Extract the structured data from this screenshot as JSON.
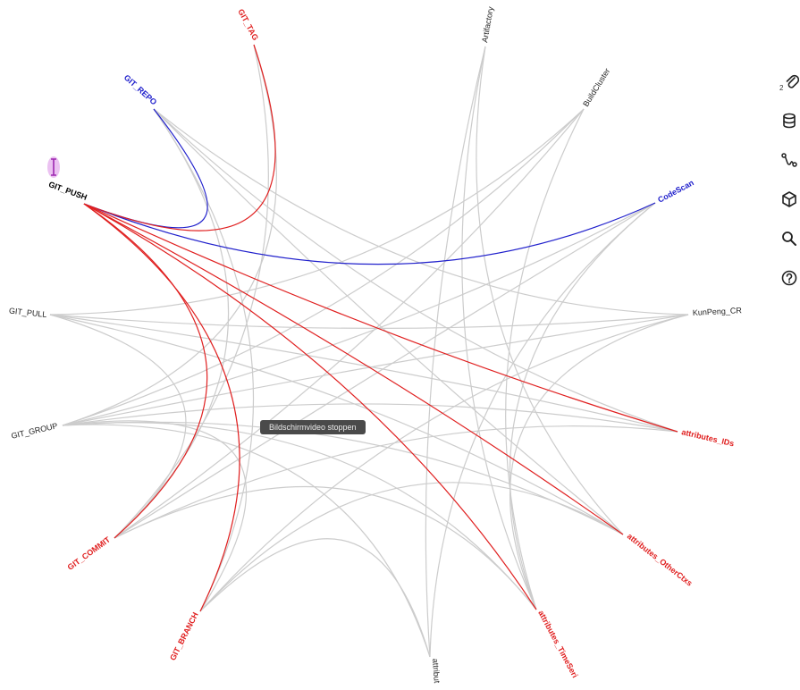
{
  "colors": {
    "edge_default": "#cccccc",
    "edge_red": "#e02020",
    "edge_blue": "#2020cc",
    "label_default": "#222222",
    "label_red": "#e02020",
    "label_blue": "#2020cc",
    "label_selected": "#000000",
    "recording_pill": "#4a4a4a"
  },
  "nodes": [
    {
      "id": "git_push",
      "label": "GIT_PUSH",
      "role": "selected"
    },
    {
      "id": "git_repo",
      "label": "GIT_REPO",
      "role": "blue"
    },
    {
      "id": "git_tag",
      "label": "GIT_TAG",
      "role": "red"
    },
    {
      "id": "artifactory",
      "label": "Artifactory",
      "role": "default"
    },
    {
      "id": "buildcluster",
      "label": "BuildCluster",
      "role": "default"
    },
    {
      "id": "codescan",
      "label": "CodeScan",
      "role": "blue"
    },
    {
      "id": "kunpeng_cr",
      "label": "KunPeng_CR",
      "role": "default"
    },
    {
      "id": "attributes_ids",
      "label": "attributes_IDs",
      "role": "red"
    },
    {
      "id": "attributes_otherctxs",
      "label": "attributes_OtherCtxs",
      "role": "red"
    },
    {
      "id": "attributes_timeseries",
      "label": "attributes_TimeSeri",
      "role": "red"
    },
    {
      "id": "attribut",
      "label": "attribut",
      "role": "default"
    },
    {
      "id": "git_branch",
      "label": "GIT_BRANCH",
      "role": "red"
    },
    {
      "id": "git_commit",
      "label": "GIT_COMMIT",
      "role": "red"
    },
    {
      "id": "git_group",
      "label": "GIT_GROUP",
      "role": "default"
    },
    {
      "id": "git_pull",
      "label": "GIT_PULL",
      "role": "default"
    }
  ],
  "edges": [
    {
      "from": "git_push",
      "to": "git_repo",
      "type": "blue"
    },
    {
      "from": "git_push",
      "to": "codescan",
      "type": "blue"
    },
    {
      "from": "git_push",
      "to": "git_tag",
      "type": "red"
    },
    {
      "from": "git_push",
      "to": "git_commit",
      "type": "red"
    },
    {
      "from": "git_push",
      "to": "git_branch",
      "type": "red"
    },
    {
      "from": "git_push",
      "to": "attributes_ids",
      "type": "red"
    },
    {
      "from": "git_push",
      "to": "attributes_otherctxs",
      "type": "red"
    },
    {
      "from": "git_push",
      "to": "attributes_timeseries",
      "type": "red"
    },
    {
      "from": "git_repo",
      "to": "attributes_ids",
      "type": "default"
    },
    {
      "from": "git_repo",
      "to": "attributes_otherctxs",
      "type": "default"
    },
    {
      "from": "git_repo",
      "to": "git_commit",
      "type": "default"
    },
    {
      "from": "git_repo",
      "to": "git_branch",
      "type": "default"
    },
    {
      "from": "git_repo",
      "to": "kunpeng_cr",
      "type": "default"
    },
    {
      "from": "git_tag",
      "to": "git_commit",
      "type": "default"
    },
    {
      "from": "git_tag",
      "to": "git_group",
      "type": "default"
    },
    {
      "from": "artifactory",
      "to": "attributes_timeseries",
      "type": "default"
    },
    {
      "from": "artifactory",
      "to": "attribut",
      "type": "default"
    },
    {
      "from": "artifactory",
      "to": "attributes_otherctxs",
      "type": "default"
    },
    {
      "from": "buildcluster",
      "to": "git_pull",
      "type": "default"
    },
    {
      "from": "buildcluster",
      "to": "git_group",
      "type": "default"
    },
    {
      "from": "buildcluster",
      "to": "attributes_timeseries",
      "type": "default"
    },
    {
      "from": "buildcluster",
      "to": "git_commit",
      "type": "default"
    },
    {
      "from": "codescan",
      "to": "git_group",
      "type": "default"
    },
    {
      "from": "codescan",
      "to": "attributes_timeseries",
      "type": "default"
    },
    {
      "from": "codescan",
      "to": "attribut",
      "type": "default"
    },
    {
      "from": "codescan",
      "to": "git_commit",
      "type": "default"
    },
    {
      "from": "kunpeng_cr",
      "to": "git_pull",
      "type": "default"
    },
    {
      "from": "kunpeng_cr",
      "to": "git_group",
      "type": "default"
    },
    {
      "from": "kunpeng_cr",
      "to": "attributes_timeseries",
      "type": "default"
    },
    {
      "from": "kunpeng_cr",
      "to": "git_branch",
      "type": "default"
    },
    {
      "from": "attributes_ids",
      "to": "git_pull",
      "type": "default"
    },
    {
      "from": "attributes_ids",
      "to": "git_group",
      "type": "default"
    },
    {
      "from": "attributes_ids",
      "to": "git_commit",
      "type": "default"
    },
    {
      "from": "attributes_otherctxs",
      "to": "git_group",
      "type": "default"
    },
    {
      "from": "attributes_otherctxs",
      "to": "git_branch",
      "type": "default"
    },
    {
      "from": "attributes_timeseries",
      "to": "git_commit",
      "type": "default"
    },
    {
      "from": "attributes_timeseries",
      "to": "git_group",
      "type": "default"
    },
    {
      "from": "attribut",
      "to": "git_group",
      "type": "default"
    },
    {
      "from": "attribut",
      "to": "git_branch",
      "type": "default"
    },
    {
      "from": "git_pull",
      "to": "git_commit",
      "type": "default"
    },
    {
      "from": "git_pull",
      "to": "attributes_otherctxs",
      "type": "default"
    },
    {
      "from": "git_group",
      "to": "git_branch",
      "type": "default"
    }
  ],
  "toolbar": {
    "badge": "2",
    "tools": [
      {
        "name": "attach-icon"
      },
      {
        "name": "database-icon"
      },
      {
        "name": "path-icon"
      },
      {
        "name": "package-icon"
      },
      {
        "name": "search-icon"
      },
      {
        "name": "help-icon"
      }
    ]
  },
  "recording": {
    "stop_label": "Bildschirmvideo stoppen"
  }
}
